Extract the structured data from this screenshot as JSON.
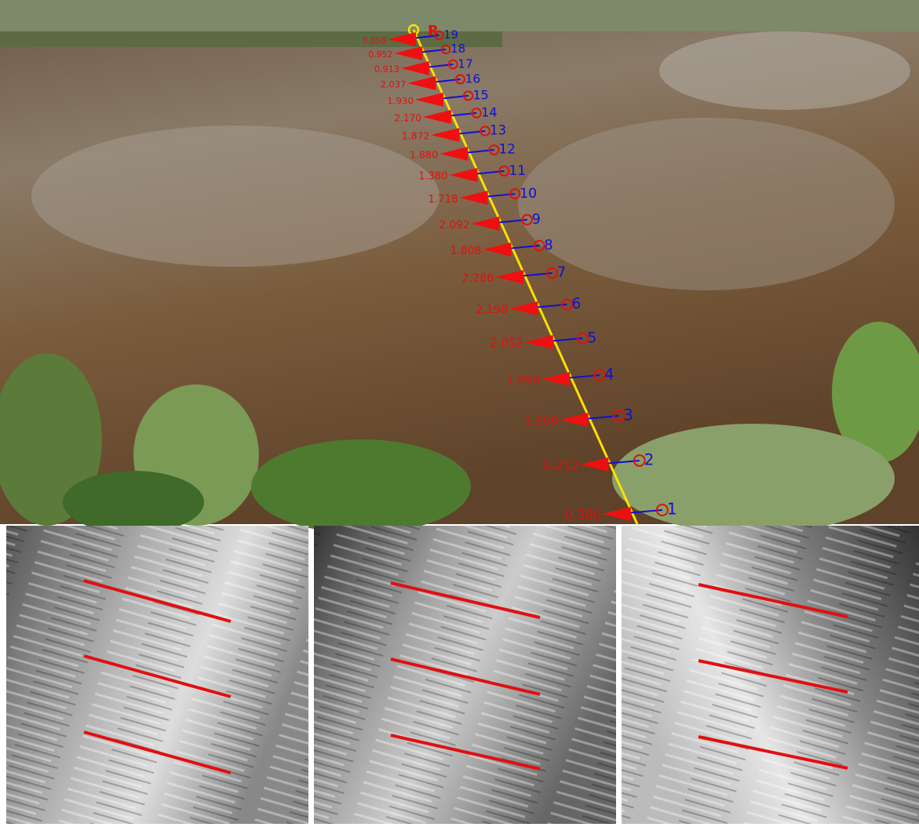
{
  "marker": "R",
  "stations": [
    {
      "label": "1",
      "value": "0.380"
    },
    {
      "label": "2",
      "value": "0.212"
    },
    {
      "label": "3",
      "value": "1.509"
    },
    {
      "label": "4",
      "value": "1.699"
    },
    {
      "label": "5",
      "value": "2.052"
    },
    {
      "label": "6",
      "value": "2.198"
    },
    {
      "label": "7",
      "value": "2.286"
    },
    {
      "label": "8",
      "value": "1.808"
    },
    {
      "label": "9",
      "value": "2.092"
    },
    {
      "label": "10",
      "value": "1.718"
    },
    {
      "label": "11",
      "value": "1.380"
    },
    {
      "label": "12",
      "value": "1.880"
    },
    {
      "label": "13",
      "value": "1.872"
    },
    {
      "label": "14",
      "value": "2.170"
    },
    {
      "label": "15",
      "value": "1.930"
    },
    {
      "label": "16",
      "value": "2.037"
    },
    {
      "label": "17",
      "value": "0.913"
    },
    {
      "label": "18",
      "value": "0.952"
    },
    {
      "label": "19",
      "value": "0.058"
    }
  ]
}
